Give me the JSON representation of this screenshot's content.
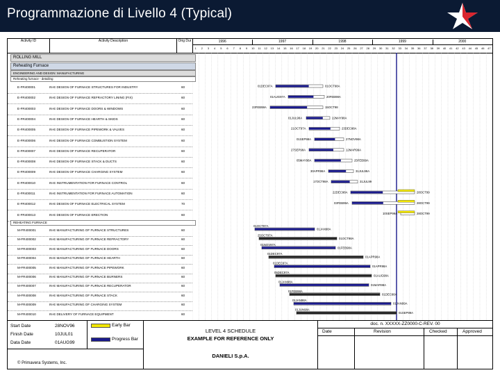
{
  "slide": {
    "title": "Programmazione di Livello 4 (Typical)"
  },
  "colors": {
    "header": "#0b1a33",
    "early_bar": "#f2e600",
    "progress_bar": "#1a1a8c",
    "logo_red": "#d9262f"
  },
  "table_header": {
    "activity_id": "Activity ID",
    "activity_desc": "Activity Description",
    "orig_dur": "Orig Dur",
    "years": [
      "1996",
      "1997",
      "1998",
      "1999",
      "2000"
    ],
    "weeks": [
      "1",
      "2",
      "3",
      "4",
      "5",
      "6",
      "7",
      "8",
      "9",
      "10",
      "11",
      "12",
      "13",
      "14",
      "15",
      "16",
      "17",
      "18",
      "19",
      "20",
      "21",
      "22",
      "23",
      "24",
      "25",
      "26",
      "27",
      "28",
      "29",
      "30",
      "31",
      "32",
      "33",
      "34",
      "35",
      "36",
      "37",
      "38",
      "39",
      "40",
      "41",
      "42",
      "43",
      "44",
      "45",
      "46",
      "47"
    ]
  },
  "rows": {
    "project": "ROLLING MILL",
    "group": "Reheating Furnace",
    "subgroup": "ENGINEERING AND DESIGN: MANUFACTURING",
    "subsub": "Reheating furnace - detailing",
    "section2": "REHEATING FURNACE"
  },
  "activities": [
    {
      "id": "E-FR400001",
      "desc": "IN-E DESIGN OF FURNACE STRUCTURES FOR INDUSTRY",
      "dur": "60"
    },
    {
      "id": "E-FR400002",
      "desc": "IN-E DESIGN OF FURNACE REFRACTORY LINING (FIX)",
      "dur": "60"
    },
    {
      "id": "E-FR400003",
      "desc": "IN-E DESIGN OF FURNACE DOORS & WINDOWS",
      "dur": "60"
    },
    {
      "id": "E-FR400004",
      "desc": "IN-E DESIGN OF FURNACE HEARTH & SKIDS",
      "dur": "60"
    },
    {
      "id": "E-FR400005",
      "desc": "IN-E DESIGN OF FURNACE PIPEWORK & VALVES",
      "dur": "60"
    },
    {
      "id": "E-FR400006",
      "desc": "IN-E DESIGN OF FURNACE COMBUSTION SYSTEM",
      "dur": "60"
    },
    {
      "id": "E-FR400007",
      "desc": "IN-E DESIGN OF FURNACE RECUPERATOR",
      "dur": "60"
    },
    {
      "id": "E-FR400008",
      "desc": "IN-E DESIGN OF FURNACE STACK & DUCTS",
      "dur": "60"
    },
    {
      "id": "E-FR400009",
      "desc": "IN-E DESIGN OF FURNACE CHARGING SYSTEM",
      "dur": "60"
    },
    {
      "id": "E-FR400010",
      "desc": "IN-E INSTRUMENTATION FOR FURNACE CONTROL",
      "dur": "60"
    },
    {
      "id": "E-FR400011",
      "desc": "IN-E INSTRUMENTATION FOR FURNACE AUTOMATION",
      "dur": "60"
    },
    {
      "id": "E-FR400012",
      "desc": "IN-E DESIGN OF FURNACE ELECTRICAL SYSTEM",
      "dur": "70"
    },
    {
      "id": "E-FR400013",
      "desc": "IN-E DESIGN OF FURNACE ERECTION",
      "dur": "60"
    }
  ],
  "activities2": [
    {
      "id": "M-FR400001",
      "desc": "IN-E MANUFACTURING OF FURNACE STRUCTURES",
      "dur": "60"
    },
    {
      "id": "M-FR400002",
      "desc": "IN-E MANUFACTURING OF FURNACE REFRACTORY",
      "dur": "60"
    },
    {
      "id": "M-FR400003",
      "desc": "IN-E MANUFACTURING OF FURNACE DOORS",
      "dur": "60"
    },
    {
      "id": "M-FR400004",
      "desc": "IN-E MANUFACTURING OF FURNACE HEARTH",
      "dur": "60"
    },
    {
      "id": "M-FR400005",
      "desc": "IN-E MANUFACTURING OF FURNACE PIPEWORK",
      "dur": "60"
    },
    {
      "id": "M-FR400006",
      "desc": "IN-E MANUFACTURING OF FURNACE BURNERS",
      "dur": "60"
    },
    {
      "id": "M-FR400007",
      "desc": "IN-E MANUFACTURING OF FURNACE RECUPERATOR",
      "dur": "60"
    },
    {
      "id": "M-FR400008",
      "desc": "IN-E MANUFACTURING OF FURNACE STACK",
      "dur": "60"
    },
    {
      "id": "M-FR400009",
      "desc": "IN-E MANUFACTURING OF CHARGING SYSTEM",
      "dur": "60"
    },
    {
      "id": "M-FR400010",
      "desc": "IN-E DELIVERY OF FURNACE EQUIPMENT",
      "dur": "60"
    }
  ],
  "gantt_labels": {
    "dates_a": [
      "01DEC97A",
      "01AUG97A",
      "23FEB98A",
      "01JUL98A",
      "21OCT97A",
      "01SEP98A",
      "27SEP98A",
      "05MAY98A",
      "30APR98A",
      "17OCT98A",
      "22DEC98A",
      "03FEB99A",
      "10SEP99A"
    ],
    "dates_b": [
      "01OCT98A",
      "20FEB98A",
      "15OCT98",
      "22MAY98A",
      "23DEC98A",
      "27NOV98A",
      "12MAR99A",
      "25FEB99A",
      "31JUL99A",
      "31JUL99",
      "28OCT99",
      "28OCT99",
      "28OCT99"
    ],
    "mfg_start": [
      "01OCT97A",
      "25OCT97A",
      "01NOV97A",
      "01DEC97A",
      "01DEC97A",
      "05DEC97A",
      "01JAN98A",
      "01FEB98A",
      "01JAN98A",
      "01JUN98A"
    ],
    "mfg_end": [
      "01JAN98A",
      "01OCT98A",
      "01FEB98A",
      "01APR98A",
      "01APR98A",
      "01AUG98A",
      "01MAR98A",
      "01DEC98A",
      "01JAN99A",
      "01SEP99A"
    ]
  },
  "footer": {
    "start_label": "Start Date",
    "start_value": "28NOV96",
    "finish_label": "Finish Date",
    "finish_value": "10JUL01",
    "data_label": "Data Date",
    "data_value": "01AUG99",
    "copyright": "© Primavera Systems, Inc.",
    "early_bar": "Early Bar",
    "progress_bar": "Progress Bar",
    "schedule_title": "LEVEL 4 SCHEDULE",
    "schedule_sub": "EXAMPLE FOR REFERENCE ONLY",
    "company": "DANIELI S.p.A.",
    "doc_no": "doc. n. XXXXX-ZZ0000-C-REV. 00",
    "col_date": "Date",
    "col_revision": "Revision",
    "col_checked": "Checked",
    "col_approved": "Approved"
  }
}
